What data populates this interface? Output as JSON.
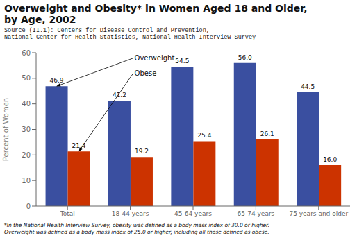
{
  "chart_data": {
    "type": "bar",
    "title": "Overweight and Obesity* in Women Aged 18 and Older,\nby Age, 2002",
    "subtitle": "Source (II.1): Centers for Disease Control and Prevention,\nNational Center for Health Statistics, National Health Interview Survey",
    "annotations": [
      "*In the National Health Interview Survey, obesity was defined as a body mass index of 30.0 or higher.\nOverweight was defined as a body mass index of 25.0 or higher, including all those defined as obese."
    ],
    "categories": [
      "Total",
      "18-44 years",
      "45-64 years",
      "65-74 years",
      "75 years and older"
    ],
    "series": [
      {
        "name": "Overweight",
        "color": "#3a4fa0",
        "values": [
          46.9,
          41.2,
          54.5,
          56.0,
          44.5
        ],
        "value_labels": [
          "46.9",
          "41.2",
          "54.5",
          "56.0",
          "44.5"
        ]
      },
      {
        "name": "Obese",
        "color": "#cc3300",
        "values": [
          21.4,
          19.2,
          25.4,
          26.1,
          16.0
        ],
        "value_labels": [
          "21.4",
          "19.2",
          "25.4",
          "26.1",
          "16.0"
        ]
      }
    ],
    "ylabel": "Percent of Women",
    "ylim": [
      0,
      60
    ],
    "yticks": [
      0,
      10,
      20,
      30,
      40,
      50,
      60
    ],
    "data_labels": true,
    "grid": false
  }
}
